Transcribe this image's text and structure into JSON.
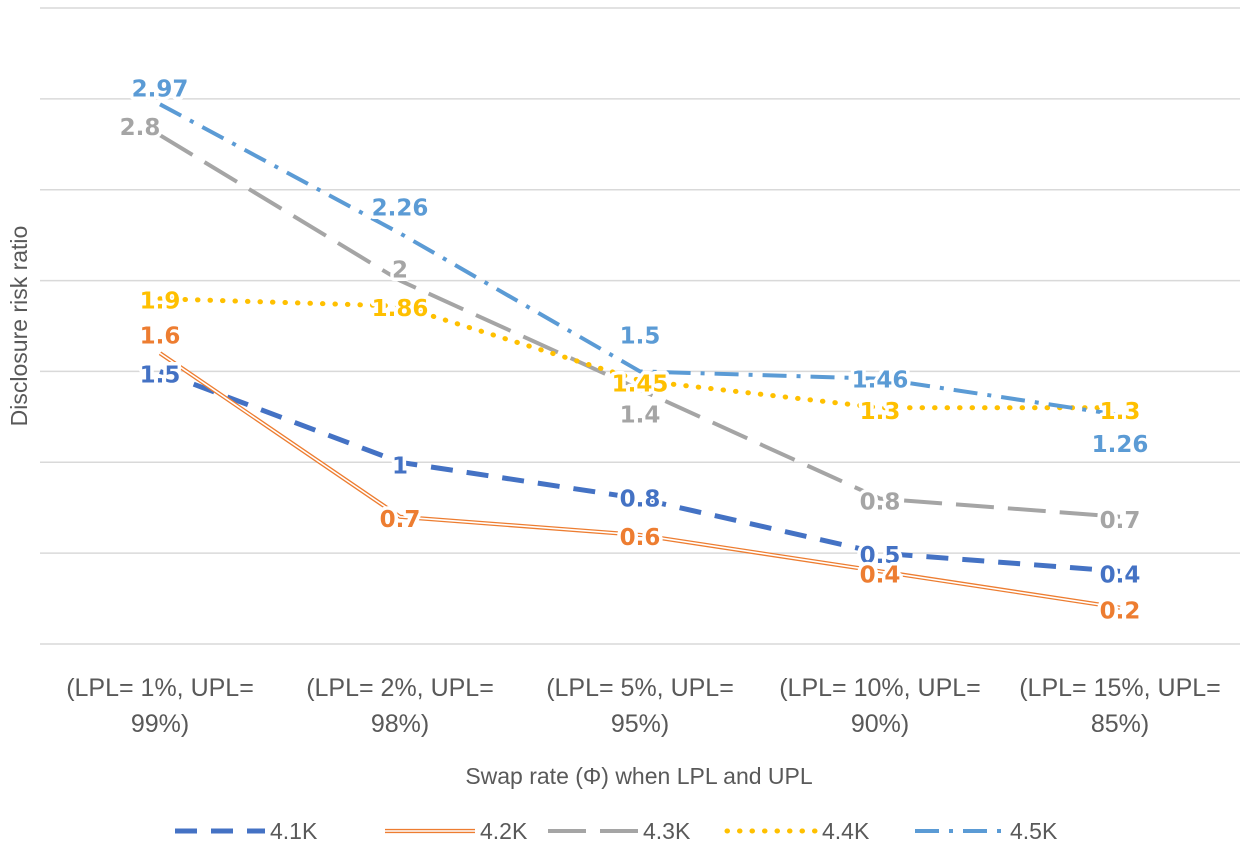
{
  "chart_data": {
    "type": "line",
    "xlabel": "Swap rate (Φ) when LPL and  UPL",
    "ylabel": "Disclosure risk ratio",
    "ylim": [
      0,
      3.5
    ],
    "grid": true,
    "legend_position": "bottom",
    "categories": [
      [
        "(LPL= 1%, UPL=",
        "99%)"
      ],
      [
        "(LPL= 2%, UPL=",
        "98%)"
      ],
      [
        "(LPL= 5%, UPL=",
        "95%)"
      ],
      [
        "(LPL= 10%,  UPL=",
        "90%)"
      ],
      [
        "(LPL= 15%, UPL=",
        "85%)"
      ]
    ],
    "series": [
      {
        "name": "4.1K",
        "values": [
          1.5,
          1,
          0.8,
          0.5,
          0.4
        ],
        "labels": [
          "1.5",
          "1",
          "0.8",
          "0.5",
          "0.4"
        ],
        "color": "#4472c4",
        "style": "dash"
      },
      {
        "name": "4.2K",
        "values": [
          1.6,
          0.7,
          0.6,
          0.4,
          0.2
        ],
        "labels": [
          "1.6",
          "0.7",
          "0.6",
          "0.4",
          "0.2"
        ],
        "color": "#ed7d31",
        "style": "double"
      },
      {
        "name": "4.3K",
        "values": [
          2.8,
          2,
          1.4,
          0.8,
          0.7
        ],
        "labels": [
          "2.8",
          "2",
          "1.4",
          "0.8",
          "0.7"
        ],
        "color": "#a5a5a5",
        "style": "longdash"
      },
      {
        "name": "4.4K",
        "values": [
          1.9,
          1.86,
          1.45,
          1.3,
          1.3
        ],
        "labels": [
          "1.9",
          "1.86",
          "1.45",
          "1.3",
          "1.3"
        ],
        "color": "#ffc000",
        "style": "dot"
      },
      {
        "name": "4.5K",
        "values": [
          2.97,
          2.26,
          1.5,
          1.46,
          1.26
        ],
        "labels": [
          "2.97",
          "2.26",
          "1.5",
          "1.46",
          "1.26"
        ],
        "color": "#5b9bd5",
        "style": "dashdot"
      }
    ]
  }
}
